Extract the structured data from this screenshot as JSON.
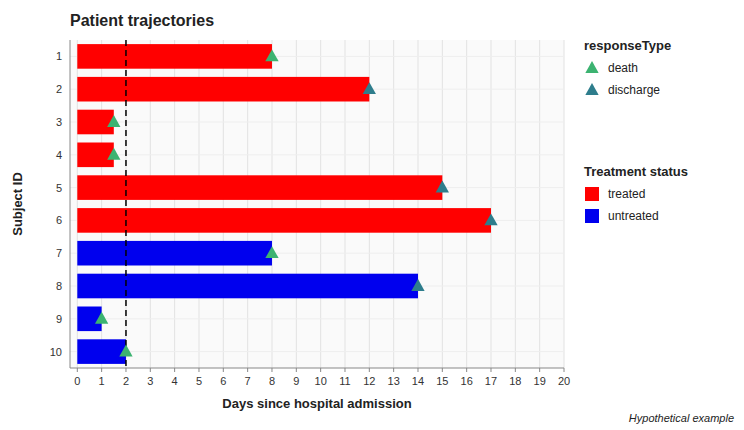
{
  "chart_data": {
    "type": "bar",
    "orientation": "horizontal",
    "stacked": true,
    "title": "Patient trajectories",
    "subtitle": "Hypothetical example",
    "x_label": "Days since hospital admission",
    "y_label": "Subject ID",
    "categories": [
      1,
      2,
      3,
      4,
      5,
      6,
      7,
      8,
      9,
      10
    ],
    "series": [
      {
        "name": "death",
        "legend_group": "responseType",
        "type": "scatter",
        "marker": "triangle-up",
        "color": "#3cb371",
        "values": [
          8,
          null,
          1.5,
          1.5,
          null,
          null,
          8,
          null,
          1,
          2
        ]
      },
      {
        "name": "discharge",
        "legend_group": "responseType",
        "type": "scatter",
        "marker": "triangle-up",
        "color": "#2E7D8C",
        "values": [
          null,
          12,
          null,
          null,
          15,
          17,
          null,
          14,
          null,
          null
        ]
      },
      {
        "name": "treated",
        "legend_group": "Treatment status",
        "type": "bar",
        "color": "#FF0000",
        "values": [
          8,
          12,
          1.5,
          1.5,
          15,
          17,
          null,
          null,
          null,
          null
        ]
      },
      {
        "name": "untreated",
        "legend_group": "Treatment status",
        "type": "bar",
        "color": "#0000EE",
        "values": [
          null,
          null,
          null,
          null,
          null,
          null,
          8,
          14,
          1,
          2
        ]
      }
    ],
    "reference_lines": [
      {
        "x": 2,
        "line_style": "dashed",
        "color": "#000000"
      }
    ],
    "xlim": [
      -0.3,
      20
    ],
    "xticks": [
      0,
      1,
      2,
      3,
      4,
      5,
      6,
      7,
      8,
      9,
      10,
      11,
      12,
      13,
      14,
      15,
      16,
      17,
      18,
      19,
      20
    ],
    "grid": true,
    "legend": "right"
  }
}
